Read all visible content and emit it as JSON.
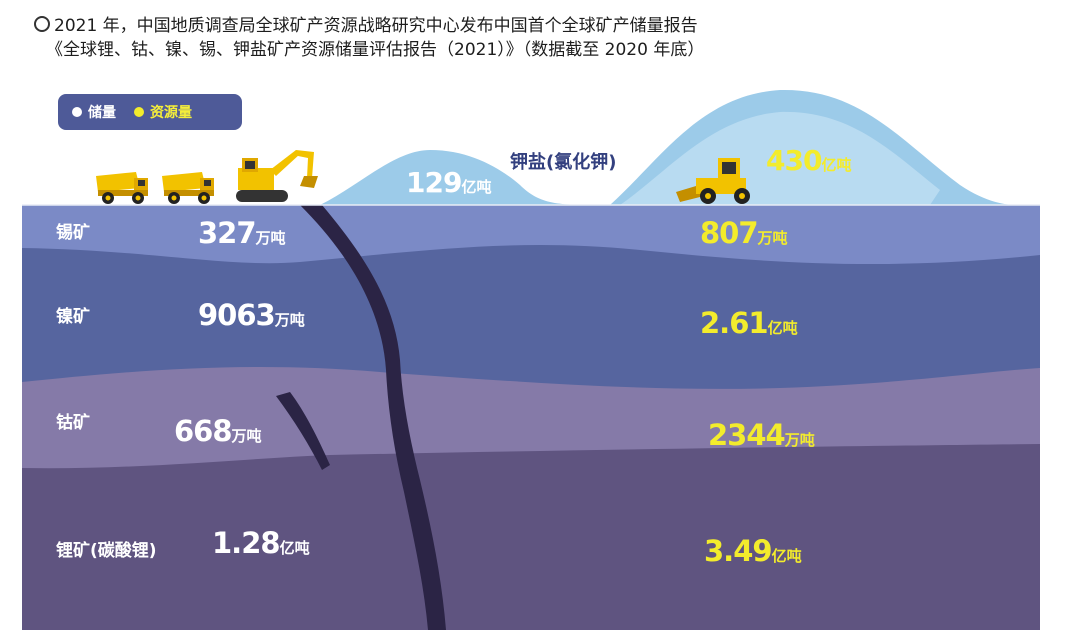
{
  "caption": {
    "line1": "2021 年，中国地质调查局全球矿产资源战略研究中心发布中国首个全球矿产储量报告",
    "line2": "《全球锂、钴、镍、锡、钾盐矿产资源储量评估报告（2021）》（数据截至 2020 年底）"
  },
  "legend": {
    "reserves": "储量",
    "resources": "资源量"
  },
  "colors": {
    "reserves": "#ffffff",
    "resources": "#f3ec2c",
    "tin_layer": "#7b8ac6",
    "nickel_layer": "#56659f",
    "cobalt_layer": "#857aa8",
    "lithium_layer": "#5f5480",
    "mound": "#9ccbe9"
  },
  "chart_data": {
    "type": "table",
    "series": [
      {
        "name": "储量",
        "values": [
          327,
          9063,
          668,
          1.28,
          129
        ]
      },
      {
        "name": "资源量",
        "values": [
          807,
          2.61,
          2344,
          3.49,
          430
        ]
      }
    ],
    "categories": [
      "锡矿",
      "镍矿",
      "钴矿",
      "锂矿(碳酸锂)",
      "钾盐(氯化钾)"
    ],
    "units": {
      "reserves": [
        "万吨",
        "万吨",
        "万吨",
        "亿吨",
        "亿吨"
      ],
      "resources": [
        "万吨",
        "亿吨",
        "万吨",
        "亿吨",
        "亿吨"
      ]
    }
  },
  "layers": {
    "tin": {
      "name": "锡矿",
      "reserve_num": "327",
      "reserve_unit": "万吨",
      "resource_num": "807",
      "resource_unit": "万吨"
    },
    "nickel": {
      "name": "镍矿",
      "reserve_num": "9063",
      "reserve_unit": "万吨",
      "resource_num": "2.61",
      "resource_unit": "亿吨"
    },
    "cobalt": {
      "name": "钴矿",
      "reserve_num": "668",
      "reserve_unit": "万吨",
      "resource_num": "2344",
      "resource_unit": "万吨"
    },
    "lithium": {
      "name": "锂矿(碳酸锂)",
      "reserve_num": "1.28",
      "reserve_unit": "亿吨",
      "resource_num": "3.49",
      "resource_unit": "亿吨"
    }
  },
  "potash": {
    "name": "钾盐(氯化钾)",
    "reserve_num": "129",
    "reserve_unit": "亿吨",
    "resource_num": "430",
    "resource_unit": "亿吨"
  },
  "icons": [
    "dump-truck-icon",
    "excavator-icon",
    "wheel-loader-icon"
  ]
}
